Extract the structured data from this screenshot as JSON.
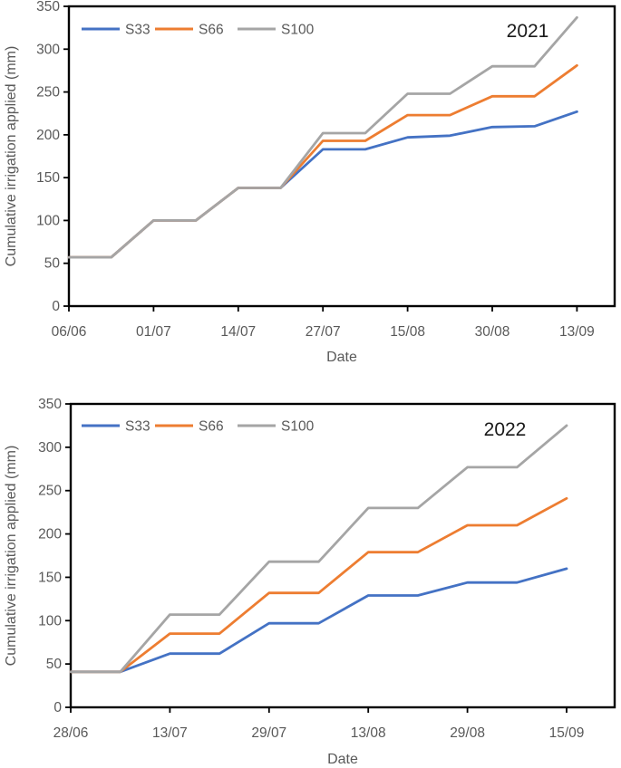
{
  "page": {
    "background": "#ffffff"
  },
  "styles": {
    "axis_color": "#000000",
    "tick_label_color": "#595959",
    "axis_title_color": "#595959",
    "year_label_color": "#1a1a1a"
  },
  "chart_data": [
    {
      "type": "line",
      "title": "2021",
      "xlabel": "Date",
      "ylabel": "Cumulative irrigation applied (mm)",
      "ylim": [
        0,
        350
      ],
      "grid": false,
      "legend_position": "top-left-inside",
      "ytick_labels": [
        "350",
        "300",
        "250",
        "200",
        "150",
        "100",
        "50",
        "0"
      ],
      "xtick_labels": [
        "06/06",
        "01/07",
        "14/07",
        "27/07",
        "15/08",
        "30/08",
        "13/09"
      ],
      "x_labels_every": 2,
      "n_points": 13,
      "series": [
        {
          "name": "S33",
          "color": "#4472C4",
          "values": [
            57,
            57,
            100,
            100,
            138,
            138,
            183,
            183,
            197,
            199,
            209,
            210,
            227
          ]
        },
        {
          "name": "S66",
          "color": "#ED7D31",
          "values": [
            57,
            57,
            100,
            100,
            138,
            138,
            193,
            193,
            223,
            223,
            245,
            245,
            281
          ]
        },
        {
          "name": "S100",
          "color": "#A5A5A5",
          "values": [
            57,
            57,
            100,
            100,
            138,
            138,
            202,
            202,
            248,
            248,
            280,
            280,
            337
          ]
        }
      ]
    },
    {
      "type": "line",
      "title": "2022",
      "xlabel": "Date",
      "ylabel": "Cumulative irrigation applied (mm)",
      "ylim": [
        0,
        350
      ],
      "grid": false,
      "legend_position": "top-left-inside",
      "ytick_labels": [
        "350",
        "300",
        "250",
        "200",
        "150",
        "100",
        "50",
        "0"
      ],
      "xtick_labels": [
        "28/06",
        "13/07",
        "29/07",
        "13/08",
        "29/08",
        "15/09"
      ],
      "x_labels_every": 2,
      "n_points": 11,
      "series": [
        {
          "name": "S33",
          "color": "#4472C4",
          "values": [
            41,
            41,
            62,
            62,
            97,
            97,
            129,
            129,
            144,
            144,
            160
          ]
        },
        {
          "name": "S66",
          "color": "#ED7D31",
          "values": [
            41,
            41,
            85,
            85,
            132,
            132,
            179,
            179,
            210,
            210,
            241
          ]
        },
        {
          "name": "S100",
          "color": "#A5A5A5",
          "values": [
            41,
            41,
            107,
            107,
            168,
            168,
            230,
            230,
            277,
            277,
            325
          ]
        }
      ]
    }
  ]
}
